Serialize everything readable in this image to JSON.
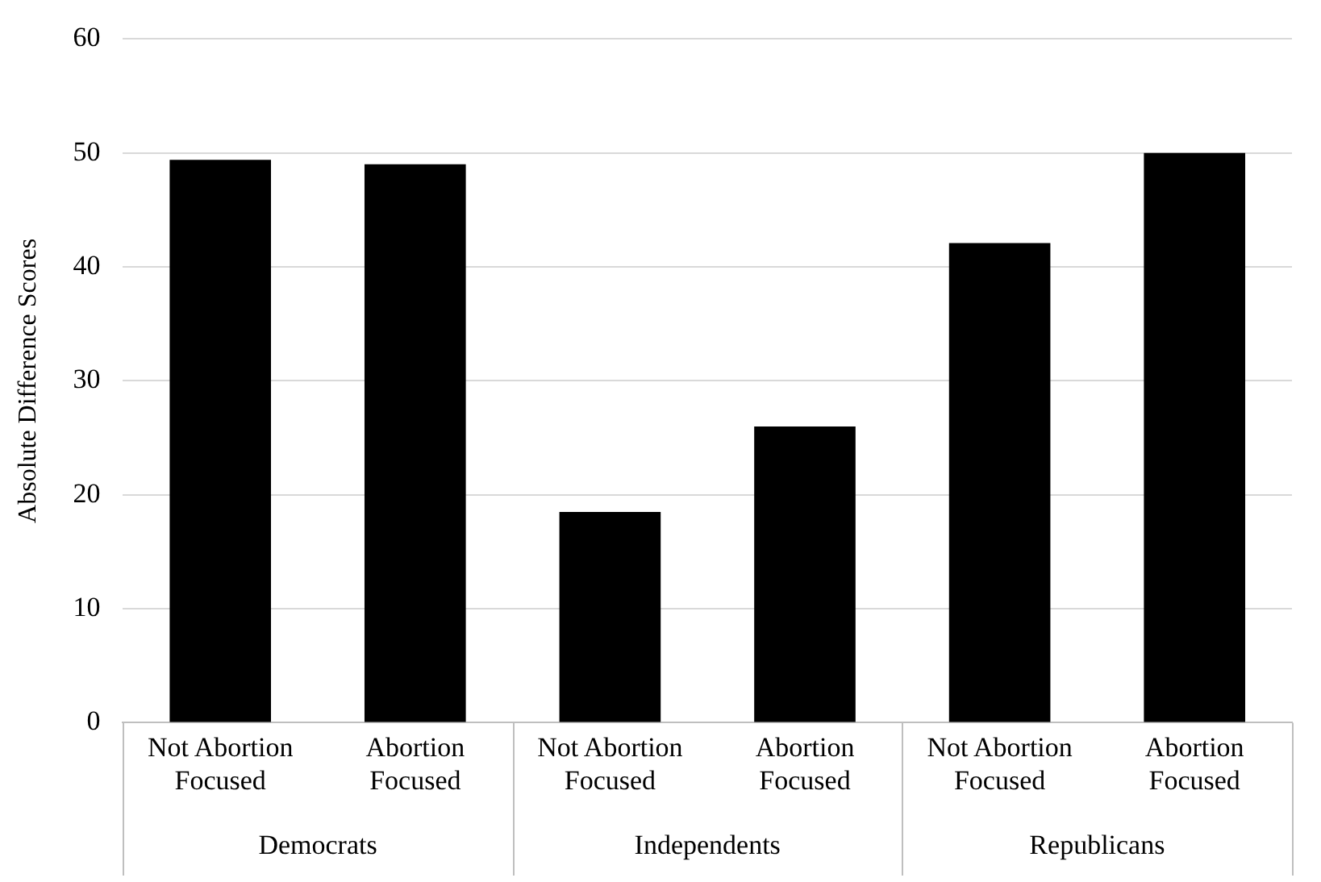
{
  "chart_data": {
    "type": "bar",
    "ylabel": "Absolute Difference Scores",
    "categories": [
      "Not Abortion Focused",
      "Abortion Focused",
      "Not Abortion Focused",
      "Abortion Focused",
      "Not Abortion Focused",
      "Abortion Focused"
    ],
    "values": [
      49.4,
      49.0,
      18.5,
      26.0,
      42.1,
      50.0
    ],
    "color": "#000000",
    "ylim": [
      0,
      60
    ],
    "yticks": [
      0,
      10,
      20,
      30,
      40,
      50,
      60
    ],
    "grid": "y",
    "annotations": [
      "Democrats",
      "Independents",
      "Republicans"
    ]
  }
}
